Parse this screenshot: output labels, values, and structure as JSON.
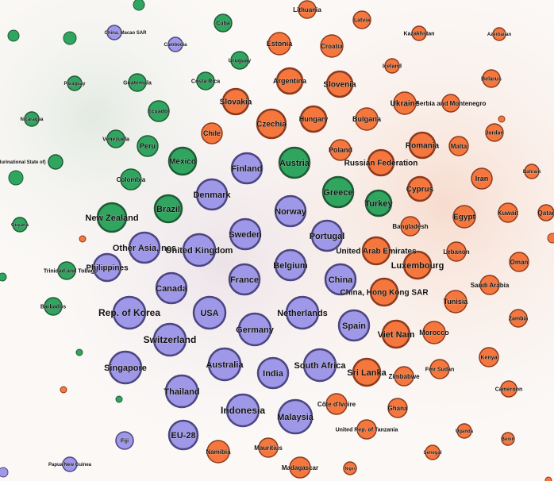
{
  "colors": {
    "blue": "#9f97e8",
    "blue_border": "#4b4680",
    "orange": "#f5773d",
    "orange_border": "#8c3a1d",
    "green": "#2fa55f",
    "green_border": "#1f5a34",
    "background": "#fbf8f6"
  },
  "network": {
    "nodes": [
      {
        "label": "Lithuania",
        "group": "orange"
      },
      {
        "label": "Latvia",
        "group": "orange"
      },
      {
        "label": "Cuba",
        "group": "green"
      },
      {
        "label": "China, Macao SAR",
        "group": "blue"
      },
      {
        "label": "Cambodia",
        "group": "blue"
      },
      {
        "label": "Estonia",
        "group": "orange"
      },
      {
        "label": "Croatia",
        "group": "orange"
      },
      {
        "label": "Kazakhstan",
        "group": "orange"
      },
      {
        "label": "Azerbaijan",
        "group": "orange"
      },
      {
        "label": "Uruguay",
        "group": "green"
      },
      {
        "label": "Iceland",
        "group": "orange"
      },
      {
        "label": "Argentina",
        "group": "orange"
      },
      {
        "label": "Slovenia",
        "group": "orange"
      },
      {
        "label": "Belarus",
        "group": "orange"
      },
      {
        "label": "Paraguay",
        "group": "green"
      },
      {
        "label": "Guatemala",
        "group": "green"
      },
      {
        "label": "Costa Rica",
        "group": "green"
      },
      {
        "label": "Slovakia",
        "group": "orange"
      },
      {
        "label": "Ukraine",
        "group": "orange"
      },
      {
        "label": "Serbia and Montenegro",
        "group": "orange"
      },
      {
        "label": "Ecuador",
        "group": "green"
      },
      {
        "label": "Czechia",
        "group": "orange"
      },
      {
        "label": "Hungary",
        "group": "orange"
      },
      {
        "label": "Bulgaria",
        "group": "orange"
      },
      {
        "label": "Nicaragua",
        "group": "green"
      },
      {
        "label": "Chile",
        "group": "orange"
      },
      {
        "label": "Jordan",
        "group": "orange"
      },
      {
        "label": "Venezuela",
        "group": "green"
      },
      {
        "label": "Peru",
        "group": "green"
      },
      {
        "label": "Poland",
        "group": "orange"
      },
      {
        "label": "Romania",
        "group": "orange"
      },
      {
        "label": "Malta",
        "group": "orange"
      },
      {
        "label": "Mexico",
        "group": "green"
      },
      {
        "label": "Austria",
        "group": "green"
      },
      {
        "label": "Russian Federation",
        "group": "orange"
      },
      {
        "label": "Bolivia (Plurinational State of)",
        "group": "green"
      },
      {
        "label": "Finland",
        "group": "blue"
      },
      {
        "label": "Bahrain",
        "group": "orange"
      },
      {
        "label": "Colombia",
        "group": "green"
      },
      {
        "label": "Iran",
        "group": "orange"
      },
      {
        "label": "Cyprus",
        "group": "orange"
      },
      {
        "label": "Denmark",
        "group": "blue"
      },
      {
        "label": "Greece",
        "group": "green"
      },
      {
        "label": "Brazil",
        "group": "green"
      },
      {
        "label": "Turkey",
        "group": "green"
      },
      {
        "label": "Norway",
        "group": "blue"
      },
      {
        "label": "Egypt",
        "group": "orange"
      },
      {
        "label": "Kuwait",
        "group": "orange"
      },
      {
        "label": "Qatar",
        "group": "orange"
      },
      {
        "label": "New Zealand",
        "group": "green"
      },
      {
        "label": "Guyana",
        "group": "green"
      },
      {
        "label": "Bangladesh",
        "group": "orange"
      },
      {
        "label": "Sweden",
        "group": "blue"
      },
      {
        "label": "Portugal",
        "group": "blue"
      },
      {
        "label": "Other Asia, nes",
        "group": "blue"
      },
      {
        "label": "United Kingdom",
        "group": "blue"
      },
      {
        "label": "United Arab Emirates",
        "group": "orange"
      },
      {
        "label": "Lebanon",
        "group": "orange"
      },
      {
        "label": "Oman",
        "group": "orange"
      },
      {
        "label": "Philippines",
        "group": "blue"
      },
      {
        "label": "Trinidad and Tobago",
        "group": "green"
      },
      {
        "label": "Belgium",
        "group": "blue"
      },
      {
        "label": "Luxembourg",
        "group": "orange"
      },
      {
        "label": "France",
        "group": "blue"
      },
      {
        "label": "China",
        "group": "blue"
      },
      {
        "label": "Canada",
        "group": "blue"
      },
      {
        "label": "Saudi Arabia",
        "group": "orange"
      },
      {
        "label": "China, Hong Kong SAR",
        "group": "orange"
      },
      {
        "label": "Tunisia",
        "group": "orange"
      },
      {
        "label": "Barbados",
        "group": "green"
      },
      {
        "label": "Rep. of Korea",
        "group": "blue"
      },
      {
        "label": "USA",
        "group": "blue"
      },
      {
        "label": "Netherlands",
        "group": "blue"
      },
      {
        "label": "Zambia",
        "group": "orange"
      },
      {
        "label": "Spain",
        "group": "blue"
      },
      {
        "label": "Germany",
        "group": "blue"
      },
      {
        "label": "Switzerland",
        "group": "blue"
      },
      {
        "label": "Viet Nam",
        "group": "orange"
      },
      {
        "label": "Morocco",
        "group": "orange"
      },
      {
        "label": "Kenya",
        "group": "orange"
      },
      {
        "label": "Singapore",
        "group": "blue"
      },
      {
        "label": "Australia",
        "group": "blue"
      },
      {
        "label": "India",
        "group": "blue"
      },
      {
        "label": "South Africa",
        "group": "blue"
      },
      {
        "label": "Sri Lanka",
        "group": "orange"
      },
      {
        "label": "Zimbabwe",
        "group": "orange"
      },
      {
        "label": "Fmr Sudan",
        "group": "orange"
      },
      {
        "label": "Thailand",
        "group": "blue"
      },
      {
        "label": "Cameroon",
        "group": "orange"
      },
      {
        "label": "Indonesia",
        "group": "blue"
      },
      {
        "label": "Côte d'Ivoire",
        "group": "orange"
      },
      {
        "label": "Ghana",
        "group": "orange"
      },
      {
        "label": "Malaysia",
        "group": "blue"
      },
      {
        "label": "EU-28",
        "group": "blue"
      },
      {
        "label": "United Rep. of Tanzania",
        "group": "orange"
      },
      {
        "label": "Uganda",
        "group": "orange"
      },
      {
        "label": "Benin",
        "group": "orange"
      },
      {
        "label": "Fiji",
        "group": "blue"
      },
      {
        "label": "Namibia",
        "group": "orange"
      },
      {
        "label": "Mauritius",
        "group": "orange"
      },
      {
        "label": "Senegal",
        "group": "orange"
      },
      {
        "label": "Papua New Guinea",
        "group": "blue"
      },
      {
        "label": "Madagascar",
        "group": "orange"
      },
      {
        "label": "Niger",
        "group": "orange"
      }
    ],
    "unlabeled_nodes": [
      {
        "group": "green"
      },
      {
        "group": "green"
      },
      {
        "group": "green"
      },
      {
        "group": "green"
      },
      {
        "group": "green"
      },
      {
        "group": "green"
      },
      {
        "group": "green"
      },
      {
        "group": "orange"
      },
      {
        "group": "orange"
      },
      {
        "group": "orange"
      },
      {
        "group": "orange"
      },
      {
        "group": "orange"
      },
      {
        "group": "blue"
      }
    ]
  }
}
